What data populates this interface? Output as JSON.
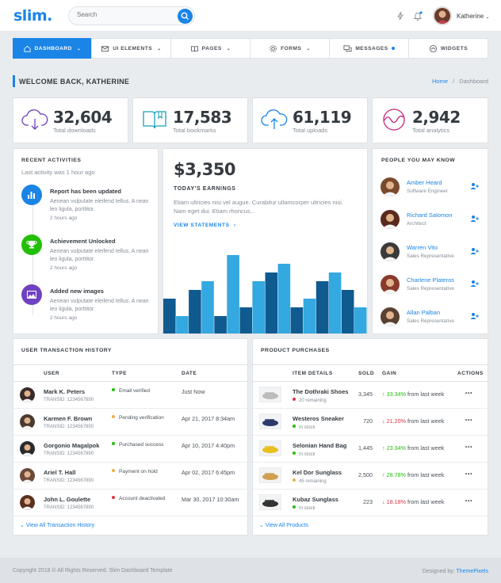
{
  "header": {
    "logo": "slim.",
    "search_placeholder": "Search",
    "user_name": "Katherine"
  },
  "nav": [
    {
      "label": "DASHBOARD",
      "icon": "home-icon",
      "active": true,
      "chevron": true
    },
    {
      "label": "UI ELEMENTS",
      "icon": "envelope-icon",
      "chevron": true
    },
    {
      "label": "PAGES",
      "icon": "book-icon",
      "chevron": true
    },
    {
      "label": "FORMS",
      "icon": "gear-icon",
      "chevron": true
    },
    {
      "label": "MESSAGES",
      "icon": "chat-icon",
      "dot": true
    },
    {
      "label": "WIDGETS",
      "icon": "gauge-icon"
    }
  ],
  "page": {
    "title": "WELCOME BACK, KATHERINE",
    "breadcrumb_home": "Home",
    "breadcrumb_current": "Dashboard"
  },
  "stats": [
    {
      "value": "32,604",
      "label": "Total downloads",
      "icon": "cloud-download-icon",
      "color": "#6f42c1"
    },
    {
      "value": "17,583",
      "label": "Total bookmarks",
      "icon": "book-open-icon",
      "color": "#17a2b8"
    },
    {
      "value": "61,119",
      "label": "Total uploads",
      "icon": "cloud-upload-icon",
      "color": "#1b84e7"
    },
    {
      "value": "2,942",
      "label": "Total analytics",
      "icon": "analytics-icon",
      "color": "#c1287c"
    }
  ],
  "activities": {
    "title": "RECENT ACTIVITIES",
    "subtitle": "Last activity was 1 hour ago",
    "items": [
      {
        "title": "Report has been updated",
        "desc": "Aenean vulputate eleifend tellus. A nean leo ligula, porttitor.",
        "time": "2 hours ago",
        "color": "#1b84e7",
        "icon": "bar-chart-icon"
      },
      {
        "title": "Achievement Unlocked",
        "desc": "Aenean vulputate eleifend tellus. A nean leo ligula, porttitor.",
        "time": "2 hours ago",
        "color": "#23bf08",
        "icon": "trophy-icon"
      },
      {
        "title": "Added new images",
        "desc": "Aenean vulputate eleifend tellus. A nean leo ligula, porttitor.",
        "time": "2 hours ago",
        "color": "#6f42c1",
        "icon": "image-icon"
      }
    ]
  },
  "earnings": {
    "amount": "$3,350",
    "title": "TODAY'S EARNINGS",
    "desc": "Etiam ultricies nisi vel augue. Curabitur ullamcorper ultricies nisi. Nam eget dui. Etiam rhoncus...",
    "link": "VIEW STATEMENTS",
    "link_arrow": "›"
  },
  "chart_data": {
    "type": "bar",
    "series": [
      {
        "color": "#0f5a8e",
        "values": [
          4,
          5,
          2,
          3,
          7,
          3,
          6,
          5
        ]
      },
      {
        "color": "#34a8e0",
        "values": [
          2,
          6,
          9,
          6,
          8,
          4,
          7,
          3
        ]
      }
    ],
    "ylim": [
      0,
      10
    ]
  },
  "people": {
    "title": "PEOPLE YOU MAY KNOW",
    "items": [
      {
        "name": "Amber Heard",
        "role": "Software Engineer",
        "color": "#7a4a2e"
      },
      {
        "name": "Richard Salomon",
        "role": "Architect",
        "color": "#5a2a1e"
      },
      {
        "name": "Warren Vito",
        "role": "Sales Representative",
        "color": "#3a3a3a"
      },
      {
        "name": "Charlene Plateros",
        "role": "Sales Representative",
        "color": "#8a3a2a"
      },
      {
        "name": "Allan Palban",
        "role": "Sales Representative",
        "color": "#5a4030"
      }
    ]
  },
  "transactions": {
    "title": "USER TRANSACTION HISTORY",
    "headers": {
      "user": "USER",
      "type": "TYPE",
      "date": "DATE"
    },
    "rows": [
      {
        "name": "Mark K. Peters",
        "id": "TRANSID: 1234567890",
        "type": "Email verified",
        "dot": "#23bf08",
        "date": "Just Now",
        "color": "#3a2a2a"
      },
      {
        "name": "Karmen F. Brown",
        "id": "TRANSID: 1234567890",
        "type": "Pending verification",
        "dot": "#f0ad4e",
        "date": "Apr 21, 2017 8:34am",
        "color": "#4a3a30"
      },
      {
        "name": "Gorgonio Magalpok",
        "id": "TRANSID: 1234567890",
        "type": "Purchased success",
        "dot": "#23bf08",
        "date": "Apr 10, 2017 4:40pm",
        "color": "#2a2a2a"
      },
      {
        "name": "Ariel T. Hall",
        "id": "TRANSID: 1234567890",
        "type": "Payment on hold",
        "dot": "#f0ad4e",
        "date": "Apr 02, 2017 6:45pm",
        "color": "#6a4a3a"
      },
      {
        "name": "John L. Goulette",
        "id": "TRANSID: 1234567890",
        "type": "Account deactivated",
        "dot": "#dc3545",
        "date": "Mar 30, 2017 10:30am",
        "color": "#5a3020"
      }
    ],
    "view_all": "View All Transaction History",
    "view_all_icon": "chevron-down-icon"
  },
  "products": {
    "title": "PRODUCT PURCHASES",
    "headers": {
      "item": "ITEM DETAILS",
      "sold": "SOLD",
      "gain": "GAIN",
      "actions": "ACTIONS"
    },
    "rows": [
      {
        "name": "The Dothraki Shoes",
        "stock": "20 remaining",
        "stock_dot": "#dc3545",
        "sold": "3,345",
        "arrow": "↑",
        "gain": "33.34%",
        "gain_color": "#23bf08",
        "suffix": "from last week",
        "actions": "•••",
        "img_color": "#bbb"
      },
      {
        "name": "Westeros Sneaker",
        "stock": "In stock",
        "stock_dot": "#23bf08",
        "sold": "720",
        "arrow": "↓",
        "gain": "21.20%",
        "gain_color": "#dc3545",
        "suffix": "from last week",
        "actions": "•••",
        "img_color": "#2a3a6a"
      },
      {
        "name": "Selonian Hand Bag",
        "stock": "In stock",
        "stock_dot": "#23bf08",
        "sold": "1,445",
        "arrow": "↑",
        "gain": "23.34%",
        "gain_color": "#23bf08",
        "suffix": "from last week",
        "actions": "•••",
        "img_color": "#e8c020"
      },
      {
        "name": "Kel Dor Sunglass",
        "stock": "45 remaining",
        "stock_dot": "#f0ad4e",
        "sold": "2,500",
        "arrow": "↑",
        "gain": "28.78%",
        "gain_color": "#23bf08",
        "suffix": "from last week",
        "actions": "•••",
        "img_color": "#d0a050"
      },
      {
        "name": "Kubaz Sunglass",
        "stock": "In stock",
        "stock_dot": "#23bf08",
        "sold": "223",
        "arrow": "↓",
        "gain": "18.18%",
        "gain_color": "#dc3545",
        "suffix": "from last week",
        "actions": "•••",
        "img_color": "#333"
      }
    ],
    "view_all": "View All Products",
    "view_all_icon": "chevron-down-icon"
  },
  "footer": {
    "copyright": "Copyright 2018 © All Rights Reserved. Slim Dashboard Template",
    "designed": "Designed by:",
    "designer": "ThemePixels"
  }
}
